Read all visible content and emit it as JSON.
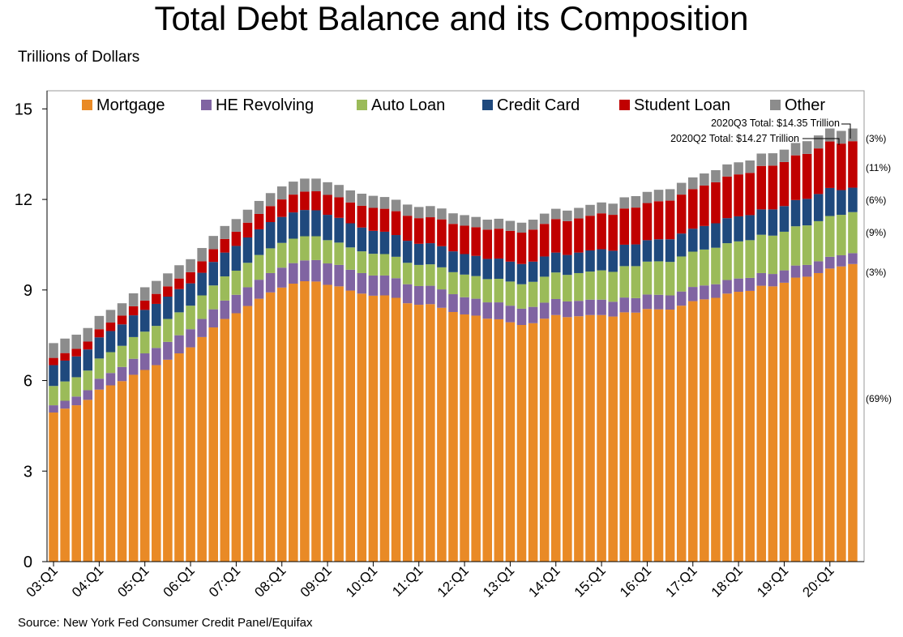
{
  "chart_data": {
    "type": "bar",
    "stacked": true,
    "title": "Total Debt Balance and its Composition",
    "ylabel": "Trillions of Dollars",
    "xlabel": "",
    "source": "Source: New York Fed Consumer Credit Panel/Equifax",
    "ylim": [
      0,
      15.6
    ],
    "yticks": [
      "0",
      "3",
      "6",
      "9",
      "12",
      "15"
    ],
    "grid": false,
    "legend_position": "top",
    "x_tick_labels": [
      "03:Q1",
      "04:Q1",
      "05:Q1",
      "06:Q1",
      "07:Q1",
      "08:Q1",
      "09:Q1",
      "10:Q1",
      "11:Q1",
      "12:Q1",
      "13:Q1",
      "14:Q1",
      "15:Q1",
      "16:Q1",
      "17:Q1",
      "18:Q1",
      "19:Q1",
      "20:Q1"
    ],
    "categories": [
      "03:Q1",
      "03:Q2",
      "03:Q3",
      "03:Q4",
      "04:Q1",
      "04:Q2",
      "04:Q3",
      "04:Q4",
      "05:Q1",
      "05:Q2",
      "05:Q3",
      "05:Q4",
      "06:Q1",
      "06:Q2",
      "06:Q3",
      "06:Q4",
      "07:Q1",
      "07:Q2",
      "07:Q3",
      "07:Q4",
      "08:Q1",
      "08:Q2",
      "08:Q3",
      "08:Q4",
      "09:Q1",
      "09:Q2",
      "09:Q3",
      "09:Q4",
      "10:Q1",
      "10:Q2",
      "10:Q3",
      "10:Q4",
      "11:Q1",
      "11:Q2",
      "11:Q3",
      "11:Q4",
      "12:Q1",
      "12:Q2",
      "12:Q3",
      "12:Q4",
      "13:Q1",
      "13:Q2",
      "13:Q3",
      "13:Q4",
      "14:Q1",
      "14:Q2",
      "14:Q3",
      "14:Q4",
      "15:Q1",
      "15:Q2",
      "15:Q3",
      "15:Q4",
      "16:Q1",
      "16:Q2",
      "16:Q3",
      "16:Q4",
      "17:Q1",
      "17:Q2",
      "17:Q3",
      "17:Q4",
      "18:Q1",
      "18:Q2",
      "18:Q3",
      "18:Q4",
      "19:Q1",
      "19:Q2",
      "19:Q3",
      "19:Q4",
      "20:Q1",
      "20:Q2",
      "20:Q3"
    ],
    "series": [
      {
        "name": "Mortgage",
        "color": "#E98A26",
        "values": [
          4.94,
          5.07,
          5.18,
          5.36,
          5.7,
          5.84,
          5.98,
          6.19,
          6.35,
          6.51,
          6.69,
          6.9,
          7.1,
          7.44,
          7.76,
          8.04,
          8.23,
          8.47,
          8.71,
          8.92,
          9.08,
          9.21,
          9.29,
          9.28,
          9.17,
          9.12,
          8.98,
          8.88,
          8.81,
          8.82,
          8.74,
          8.56,
          8.51,
          8.53,
          8.41,
          8.27,
          8.19,
          8.15,
          8.05,
          8.03,
          7.93,
          7.84,
          7.9,
          8.05,
          8.17,
          8.1,
          8.13,
          8.17,
          8.17,
          8.12,
          8.26,
          8.25,
          8.37,
          8.36,
          8.35,
          8.48,
          8.63,
          8.69,
          8.74,
          8.88,
          8.94,
          8.97,
          9.14,
          9.12,
          9.24,
          9.41,
          9.44,
          9.56,
          9.71,
          9.78,
          9.86
        ]
      },
      {
        "name": "HE Revolving",
        "color": "#8064A2",
        "values": [
          0.24,
          0.26,
          0.29,
          0.32,
          0.36,
          0.41,
          0.47,
          0.53,
          0.55,
          0.57,
          0.59,
          0.6,
          0.6,
          0.6,
          0.6,
          0.61,
          0.61,
          0.62,
          0.63,
          0.64,
          0.66,
          0.68,
          0.69,
          0.71,
          0.71,
          0.71,
          0.69,
          0.68,
          0.67,
          0.66,
          0.65,
          0.63,
          0.62,
          0.61,
          0.61,
          0.59,
          0.57,
          0.56,
          0.54,
          0.56,
          0.55,
          0.54,
          0.54,
          0.53,
          0.53,
          0.52,
          0.51,
          0.51,
          0.51,
          0.49,
          0.49,
          0.48,
          0.48,
          0.48,
          0.47,
          0.47,
          0.47,
          0.46,
          0.45,
          0.45,
          0.44,
          0.43,
          0.42,
          0.41,
          0.41,
          0.4,
          0.39,
          0.39,
          0.39,
          0.37,
          0.36
        ]
      },
      {
        "name": "Auto Loan",
        "color": "#9BBB59",
        "values": [
          0.64,
          0.64,
          0.64,
          0.65,
          0.67,
          0.69,
          0.7,
          0.72,
          0.72,
          0.73,
          0.76,
          0.76,
          0.78,
          0.78,
          0.79,
          0.8,
          0.8,
          0.81,
          0.82,
          0.82,
          0.82,
          0.81,
          0.8,
          0.79,
          0.77,
          0.74,
          0.74,
          0.72,
          0.72,
          0.71,
          0.71,
          0.71,
          0.7,
          0.71,
          0.73,
          0.73,
          0.75,
          0.75,
          0.77,
          0.78,
          0.8,
          0.81,
          0.83,
          0.86,
          0.88,
          0.88,
          0.92,
          0.93,
          0.97,
          0.99,
          1.04,
          1.06,
          1.09,
          1.11,
          1.11,
          1.16,
          1.17,
          1.19,
          1.21,
          1.22,
          1.23,
          1.25,
          1.27,
          1.27,
          1.28,
          1.3,
          1.31,
          1.33,
          1.35,
          1.34,
          1.36
        ]
      },
      {
        "name": "Credit Card",
        "color": "#1F497D",
        "values": [
          0.69,
          0.69,
          0.69,
          0.7,
          0.7,
          0.7,
          0.71,
          0.72,
          0.72,
          0.73,
          0.74,
          0.77,
          0.74,
          0.75,
          0.78,
          0.79,
          0.82,
          0.84,
          0.85,
          0.87,
          0.86,
          0.87,
          0.87,
          0.86,
          0.84,
          0.82,
          0.8,
          0.79,
          0.76,
          0.74,
          0.72,
          0.73,
          0.7,
          0.7,
          0.7,
          0.69,
          0.68,
          0.67,
          0.67,
          0.67,
          0.66,
          0.67,
          0.67,
          0.67,
          0.66,
          0.66,
          0.68,
          0.7,
          0.7,
          0.7,
          0.71,
          0.72,
          0.71,
          0.73,
          0.75,
          0.76,
          0.76,
          0.78,
          0.81,
          0.83,
          0.83,
          0.83,
          0.84,
          0.87,
          0.85,
          0.87,
          0.88,
          0.9,
          0.93,
          0.82,
          0.81
        ]
      },
      {
        "name": "Student Loan",
        "color": "#C00000",
        "values": [
          0.24,
          0.25,
          0.25,
          0.26,
          0.27,
          0.28,
          0.29,
          0.3,
          0.31,
          0.33,
          0.34,
          0.35,
          0.37,
          0.38,
          0.42,
          0.45,
          0.47,
          0.49,
          0.51,
          0.53,
          0.58,
          0.59,
          0.61,
          0.63,
          0.66,
          0.68,
          0.69,
          0.72,
          0.76,
          0.76,
          0.79,
          0.83,
          0.85,
          0.86,
          0.89,
          0.91,
          0.94,
          0.95,
          0.97,
          0.99,
          1.02,
          1.04,
          1.06,
          1.08,
          1.11,
          1.12,
          1.13,
          1.15,
          1.19,
          1.19,
          1.2,
          1.22,
          1.23,
          1.26,
          1.28,
          1.29,
          1.31,
          1.34,
          1.36,
          1.38,
          1.39,
          1.4,
          1.44,
          1.45,
          1.46,
          1.48,
          1.49,
          1.51,
          1.54,
          1.54,
          1.54
        ]
      },
      {
        "name": "Other",
        "color": "#8C8C8C",
        "values": [
          0.49,
          0.48,
          0.47,
          0.45,
          0.44,
          0.42,
          0.41,
          0.43,
          0.44,
          0.43,
          0.43,
          0.44,
          0.43,
          0.44,
          0.44,
          0.43,
          0.42,
          0.43,
          0.43,
          0.43,
          0.43,
          0.43,
          0.43,
          0.42,
          0.42,
          0.41,
          0.4,
          0.4,
          0.4,
          0.39,
          0.38,
          0.37,
          0.37,
          0.37,
          0.36,
          0.35,
          0.35,
          0.34,
          0.33,
          0.33,
          0.33,
          0.33,
          0.33,
          0.34,
          0.34,
          0.35,
          0.35,
          0.36,
          0.36,
          0.37,
          0.37,
          0.38,
          0.37,
          0.38,
          0.38,
          0.39,
          0.39,
          0.4,
          0.4,
          0.4,
          0.4,
          0.41,
          0.41,
          0.41,
          0.41,
          0.41,
          0.42,
          0.43,
          0.43,
          0.42,
          0.42
        ]
      }
    ],
    "annotations": {
      "q3_total": "2020Q3 Total: $14.35 Trillion",
      "q2_total": "2020Q2 Total: $14.27 Trillion"
    },
    "composition_labels": [
      {
        "series": "Other",
        "text": "(3%)"
      },
      {
        "series": "Student Loan",
        "text": "(11%)"
      },
      {
        "series": "Credit Card",
        "text": "(6%)"
      },
      {
        "series": "Auto Loan",
        "text": "(9%)"
      },
      {
        "series": "HE Revolving",
        "text": "(3%)"
      },
      {
        "series": "Mortgage",
        "text": "(69%)"
      }
    ]
  }
}
